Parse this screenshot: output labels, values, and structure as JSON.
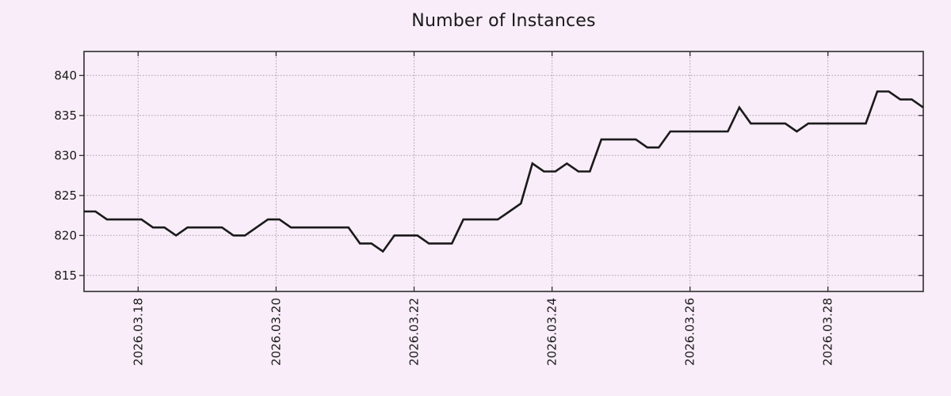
{
  "title": "Number of Instances",
  "colors": {
    "background": "#f8edf8",
    "series_line": "#1a1a1a",
    "grid": "#a39da3",
    "border": "#2e2e2e",
    "text": "#1a1a1a"
  },
  "chart_data": {
    "type": "line",
    "title": "Number of Instances",
    "xlabel": "",
    "ylabel": "",
    "grid": true,
    "legend": null,
    "x_start": "2026.03.17 05:00",
    "x_step_hours": 4,
    "ylim": [
      813,
      843
    ],
    "y_ticks": [
      815,
      820,
      825,
      830,
      835,
      840
    ],
    "x_ticks": [
      {
        "label": "2026.03.18",
        "pos": 0.0645
      },
      {
        "label": "2026.03.20",
        "pos": 0.2289
      },
      {
        "label": "2026.03.22",
        "pos": 0.3933
      },
      {
        "label": "2026.03.24",
        "pos": 0.5577
      },
      {
        "label": "2026.03.26",
        "pos": 0.7221
      },
      {
        "label": "2026.03.28",
        "pos": 0.8864
      }
    ],
    "values": [
      823,
      823,
      822,
      822,
      822,
      822,
      821,
      821,
      820,
      821,
      821,
      821,
      821,
      820,
      820,
      821,
      822,
      822,
      821,
      821,
      821,
      821,
      821,
      821,
      819,
      819,
      818,
      820,
      820,
      820,
      819,
      819,
      819,
      822,
      822,
      822,
      822,
      823,
      824,
      829,
      828,
      828,
      829,
      828,
      828,
      832,
      832,
      832,
      832,
      831,
      831,
      833,
      833,
      833,
      833,
      833,
      833,
      836,
      834,
      834,
      834,
      834,
      833,
      834,
      834,
      834,
      834,
      834,
      834,
      838,
      838,
      837,
      837,
      836
    ]
  }
}
